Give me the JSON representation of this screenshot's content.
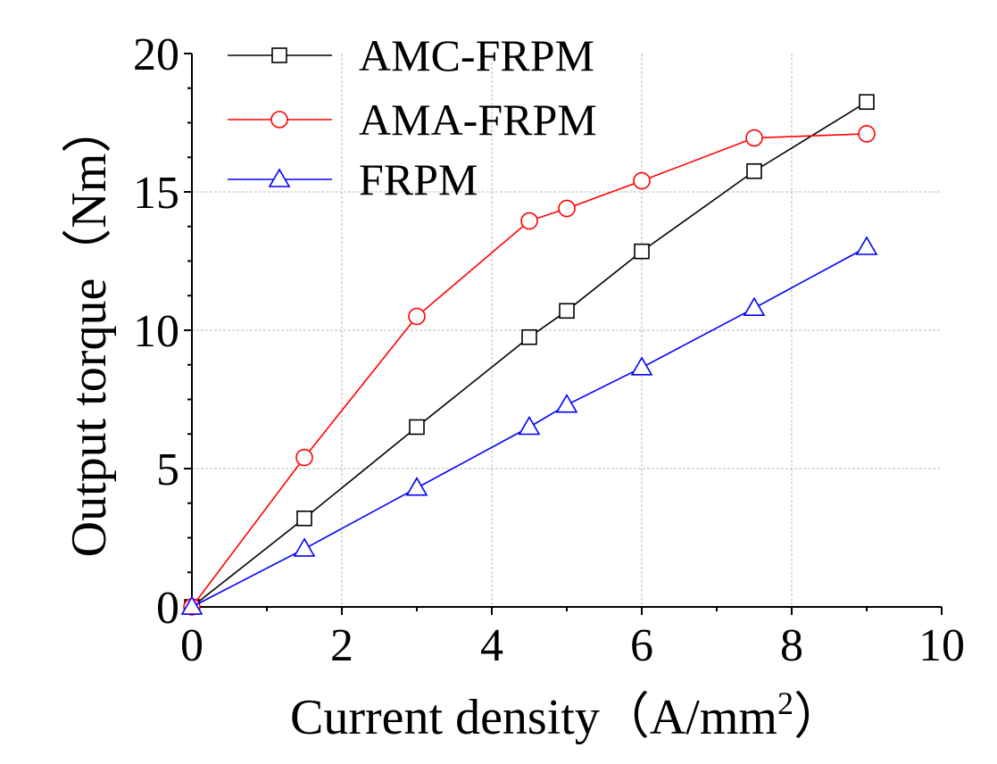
{
  "chart_data": {
    "type": "line",
    "title": "",
    "xlabel": "Current density（A/mm",
    "xlabel_sup": "2",
    "xlabel_close": "）",
    "ylabel": "Output torque（Nm）",
    "xlim": [
      0,
      10
    ],
    "ylim": [
      0,
      20
    ],
    "x_ticks": [
      0,
      2,
      4,
      6,
      8,
      10
    ],
    "x_tick_labels": [
      "0",
      "2",
      "4",
      "6",
      "8",
      "10"
    ],
    "y_ticks": [
      0,
      5,
      10,
      15,
      20
    ],
    "y_tick_labels": [
      "0",
      "5",
      "10",
      "15",
      "20"
    ],
    "grid": true,
    "legend_position": "top-left",
    "series": [
      {
        "name": "AMC-FRPM",
        "color": "#000000",
        "marker": "square",
        "x": [
          0,
          1.5,
          3,
          4.5,
          5,
          6,
          7.5,
          9
        ],
        "values": [
          0,
          3.2,
          6.5,
          9.75,
          10.7,
          12.85,
          15.75,
          18.25
        ]
      },
      {
        "name": "AMA-FRPM",
        "color": "#ff0000",
        "marker": "circle",
        "x": [
          0,
          1.5,
          3,
          4.5,
          5,
          6,
          7.5,
          9
        ],
        "values": [
          0,
          5.4,
          10.5,
          13.95,
          14.4,
          15.4,
          16.95,
          17.1
        ]
      },
      {
        "name": "FRPM",
        "color": "#0000ff",
        "marker": "triangle",
        "x": [
          0,
          1.5,
          3,
          4.5,
          5,
          6,
          7.5,
          9
        ],
        "values": [
          0,
          2.1,
          4.3,
          6.5,
          7.3,
          8.65,
          10.8,
          13.0
        ]
      }
    ]
  }
}
